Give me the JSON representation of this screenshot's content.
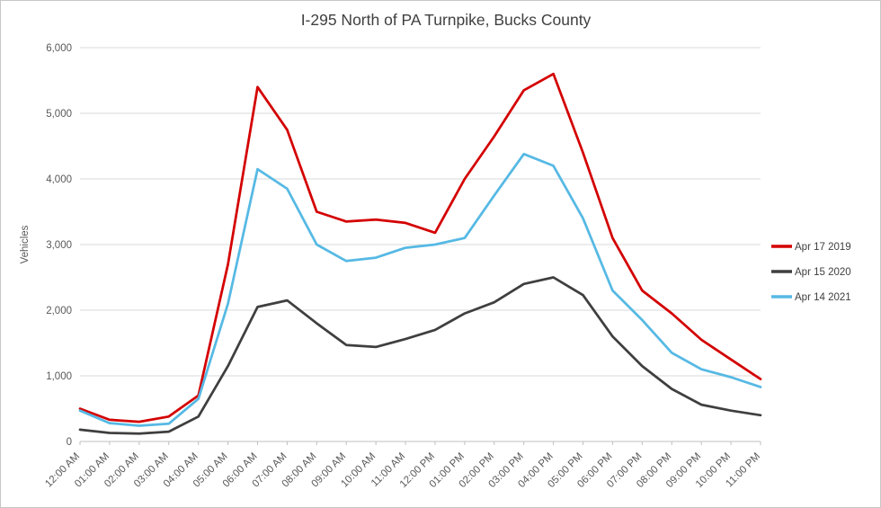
{
  "chart_data": {
    "type": "line",
    "title": "I-295 North of PA Turnpike, Bucks County",
    "xlabel": "",
    "ylabel": "Vehicles",
    "ylim": [
      0,
      6000
    ],
    "ytick_interval": 1000,
    "ytick_labels": [
      "0",
      "1,000",
      "2,000",
      "3,000",
      "4,000",
      "5,000",
      "6,000"
    ],
    "grid": true,
    "legend_position": "right",
    "categories": [
      "12:00 AM",
      "01:00 AM",
      "02:00 AM",
      "03:00 AM",
      "04:00 AM",
      "05:00 AM",
      "06:00 AM",
      "07:00 AM",
      "08:00 AM",
      "09:00 AM",
      "10:00 AM",
      "11:00 AM",
      "12:00 PM",
      "01:00 PM",
      "02:00 PM",
      "03:00 PM",
      "04:00 PM",
      "05:00 PM",
      "06:00 PM",
      "07:00 PM",
      "08:00 PM",
      "09:00 PM",
      "10:00 PM",
      "11:00 PM"
    ],
    "series": [
      {
        "name": "Apr 17 2019",
        "color": "#d40000",
        "values": [
          500,
          330,
          300,
          380,
          700,
          2700,
          5400,
          4750,
          3500,
          3350,
          3380,
          3330,
          3180,
          4000,
          4650,
          5350,
          5600,
          4400,
          3100,
          2300,
          1950,
          1550,
          1250,
          950
        ]
      },
      {
        "name": "Apr 15 2020",
        "color": "#3f3f3f",
        "values": [
          180,
          130,
          120,
          150,
          380,
          1150,
          2050,
          2150,
          1800,
          1470,
          1440,
          1560,
          1700,
          1950,
          2120,
          2400,
          2500,
          2230,
          1600,
          1150,
          800,
          560,
          470,
          400
        ]
      },
      {
        "name": "Apr 14 2021",
        "color": "#56b9e4",
        "values": [
          470,
          280,
          240,
          270,
          650,
          2100,
          4150,
          3850,
          3000,
          2750,
          2800,
          2950,
          3000,
          3100,
          3750,
          4380,
          4200,
          3400,
          2300,
          1850,
          1350,
          1100,
          980,
          830
        ]
      }
    ],
    "colors": {
      "gridline": "#d9d9d9",
      "axis": "#bfbfbf",
      "tick_label": "#595959",
      "title_text": "#404040",
      "legend_text": "#404040"
    }
  }
}
